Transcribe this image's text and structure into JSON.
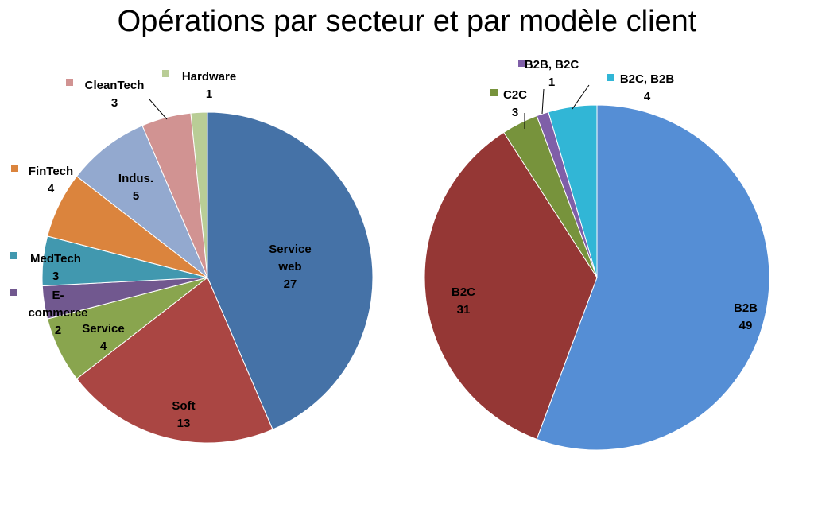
{
  "title": "Opérations par secteur et par modèle client",
  "chart_data": [
    {
      "type": "pie",
      "title": "",
      "slices": [
        {
          "label": "Service web",
          "label_lines": [
            "Service",
            "web"
          ],
          "value": 27,
          "color": "#4572A7"
        },
        {
          "label": "Soft",
          "label_lines": [
            "Soft"
          ],
          "value": 13,
          "color": "#AA4643"
        },
        {
          "label": "Service",
          "label_lines": [
            "Service"
          ],
          "value": 4,
          "color": "#89A54E"
        },
        {
          "label": "E-commerce",
          "label_lines": [
            "E-",
            "commerce"
          ],
          "value": 2,
          "color": "#71588F"
        },
        {
          "label": "MedTech",
          "label_lines": [
            "MedTech"
          ],
          "value": 3,
          "color": "#4198AF"
        },
        {
          "label": "FinTech",
          "label_lines": [
            "FinTech"
          ],
          "value": 4,
          "color": "#DB843D"
        },
        {
          "label": "Indus.",
          "label_lines": [
            "Indus."
          ],
          "value": 5,
          "color": "#93A9CF"
        },
        {
          "label": "CleanTech",
          "label_lines": [
            "CleanTech"
          ],
          "value": 3,
          "color": "#D19392"
        },
        {
          "label": "Hardware",
          "label_lines": [
            "Hardware"
          ],
          "value": 1,
          "color": "#B9CD96"
        }
      ]
    },
    {
      "type": "pie",
      "title": "",
      "slices": [
        {
          "label": "B2B",
          "label_lines": [
            "B2B"
          ],
          "value": 49,
          "color": "#558ED5"
        },
        {
          "label": "B2C",
          "label_lines": [
            "B2C"
          ],
          "value": 31,
          "color": "#953735"
        },
        {
          "label": "C2C",
          "label_lines": [
            "C2C"
          ],
          "value": 3,
          "color": "#77933C"
        },
        {
          "label": "B2B, B2C",
          "label_lines": [
            "B2B, B2C"
          ],
          "value": 1,
          "color": "#7F5FA8"
        },
        {
          "label": "B2C, B2B",
          "label_lines": [
            "B2C, B2B"
          ],
          "value": 4,
          "color": "#31B6D6"
        }
      ]
    }
  ]
}
